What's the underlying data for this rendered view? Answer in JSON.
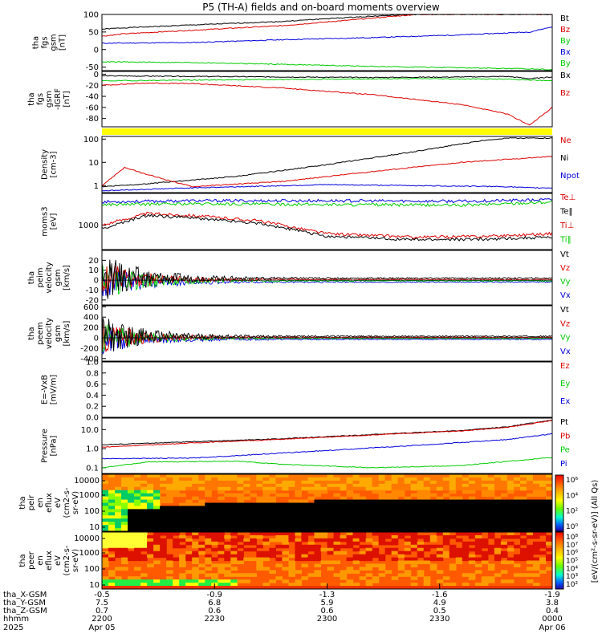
{
  "title": "P5 (TH-A) fields and on-board moments overview",
  "colors": {
    "black": "#000000",
    "red": "#dd0000",
    "green": "#00cc00",
    "blue": "#0000dd",
    "yellow": "#ffff00",
    "spec_bg": "#ff5a00"
  },
  "chart_data": [
    {
      "id": "fgs",
      "type": "line",
      "ylabel": [
        "tha",
        "fgs",
        "gsm",
        "[nT]"
      ],
      "yticks": [
        "100",
        "50",
        "0",
        "-50"
      ],
      "ylim": [
        -60,
        100
      ],
      "legend": [
        {
          "text": "Bt",
          "color": "black"
        },
        {
          "text": "Bz",
          "color": "red"
        },
        {
          "text": "By",
          "color": "green"
        },
        {
          "text": "Bx",
          "color": "blue"
        },
        {
          "text": "By",
          "color": "green"
        }
      ],
      "series": [
        {
          "color": "black",
          "values": [
            [
              0,
              58
            ],
            [
              0.05,
              62
            ],
            [
              0.2,
              70
            ],
            [
              0.4,
              80
            ],
            [
              0.5,
              88
            ],
            [
              0.6,
              95
            ],
            [
              0.7,
              100
            ]
          ]
        },
        {
          "color": "red",
          "values": [
            [
              0,
              38
            ],
            [
              0.05,
              45
            ],
            [
              0.2,
              55
            ],
            [
              0.4,
              68
            ],
            [
              0.55,
              84
            ],
            [
              0.65,
              95
            ],
            [
              0.7,
              100
            ]
          ]
        },
        {
          "color": "blue",
          "values": [
            [
              0,
              18
            ],
            [
              0.2,
              20
            ],
            [
              0.4,
              28
            ],
            [
              0.6,
              34
            ],
            [
              0.8,
              42
            ],
            [
              0.95,
              50
            ],
            [
              1,
              65
            ]
          ]
        },
        {
          "color": "green",
          "values": [
            [
              0,
              -35
            ],
            [
              0.2,
              -37
            ],
            [
              0.4,
              -42
            ],
            [
              0.6,
              -48
            ],
            [
              0.8,
              -52
            ],
            [
              0.95,
              -55
            ],
            [
              1,
              -57
            ]
          ]
        }
      ]
    },
    {
      "id": "fgs2",
      "type": "line",
      "ylabel": [
        "tha",
        "fgs",
        "gsm",
        "-IGRF",
        "[nT]"
      ],
      "yticks": [
        "0",
        "-20",
        "-40",
        "-60",
        "-80"
      ],
      "ylim": [
        -95,
        5
      ],
      "legend": [
        {
          "text": "Bx",
          "color": "black"
        },
        {
          "text": "Bz",
          "color": "red"
        }
      ],
      "series": [
        {
          "color": "black",
          "values": [
            [
              0,
              -3
            ],
            [
              0.2,
              -4
            ],
            [
              0.4,
              -5
            ],
            [
              0.6,
              -6
            ],
            [
              0.8,
              -5
            ],
            [
              0.9,
              -4
            ],
            [
              0.95,
              -8
            ],
            [
              1,
              -5
            ]
          ]
        },
        {
          "color": "green",
          "values": [
            [
              0,
              -12
            ],
            [
              0.3,
              -10
            ],
            [
              0.5,
              -9
            ],
            [
              0.7,
              -8
            ],
            [
              0.9,
              -9
            ],
            [
              1,
              -12
            ]
          ]
        },
        {
          "color": "red",
          "values": [
            [
              0,
              -20
            ],
            [
              0.1,
              -16
            ],
            [
              0.2,
              -17
            ],
            [
              0.4,
              -25
            ],
            [
              0.6,
              -37
            ],
            [
              0.8,
              -55
            ],
            [
              0.9,
              -72
            ],
            [
              0.95,
              -92
            ],
            [
              1,
              -60
            ]
          ]
        }
      ]
    },
    {
      "id": "mode_bar",
      "type": "bar",
      "color": "yellow"
    },
    {
      "id": "density",
      "type": "line",
      "ylabel": [
        "Density",
        "[cm-3]"
      ],
      "yscale": "log",
      "yticks": [
        "100",
        "10",
        "1"
      ],
      "ylim": [
        0.5,
        130
      ],
      "legend": [
        {
          "text": "Ne",
          "color": "red"
        },
        {
          "text": "Ni",
          "color": "black"
        },
        {
          "text": "Npot",
          "color": "blue"
        }
      ],
      "series": [
        {
          "color": "black",
          "values": [
            [
              0,
              0.9
            ],
            [
              0.1,
              1.2
            ],
            [
              0.3,
              2.5
            ],
            [
              0.5,
              8
            ],
            [
              0.7,
              30
            ],
            [
              0.85,
              90
            ],
            [
              0.9,
              110
            ]
          ]
        },
        {
          "color": "red",
          "values": [
            [
              0,
              1
            ],
            [
              0.05,
              6
            ],
            [
              0.1,
              3
            ],
            [
              0.2,
              0.9
            ],
            [
              0.4,
              1.5
            ],
            [
              0.6,
              4
            ],
            [
              0.8,
              10
            ],
            [
              1,
              18
            ]
          ]
        },
        {
          "color": "blue",
          "values": [
            [
              0,
              0.6
            ],
            [
              0.2,
              0.8
            ],
            [
              0.5,
              1.1
            ],
            [
              0.7,
              1
            ],
            [
              0.9,
              0.9
            ],
            [
              0.95,
              0.8
            ]
          ]
        }
      ]
    },
    {
      "id": "temp",
      "type": "line",
      "ylabel": [
        "moms3",
        "[eV]"
      ],
      "yscale": "log",
      "yticks": [
        "1000"
      ],
      "ylim": [
        100,
        20000
      ],
      "legend": [
        {
          "text": "Te⊥",
          "color": "red"
        },
        {
          "text": "Te‖",
          "color": "black"
        },
        {
          "text": "Ti⊥",
          "color": "red"
        },
        {
          "text": "Ti‖",
          "color": "green"
        }
      ],
      "series": [
        {
          "color": "blue",
          "values": [
            [
              0,
              9000
            ],
            [
              0.2,
              10000
            ],
            [
              0.5,
              10000
            ],
            [
              0.8,
              9500
            ],
            [
              1,
              11000
            ]
          ]
        },
        {
          "color": "green",
          "values": [
            [
              0,
              7000
            ],
            [
              0.2,
              7500
            ],
            [
              0.5,
              7000
            ],
            [
              0.8,
              6500
            ],
            [
              1,
              9000
            ]
          ]
        },
        {
          "color": "red",
          "values": [
            [
              0,
              1000
            ],
            [
              0.1,
              3000
            ],
            [
              0.2,
              2500
            ],
            [
              0.35,
              1500
            ],
            [
              0.5,
              450
            ],
            [
              0.7,
              320
            ],
            [
              0.85,
              350
            ],
            [
              1,
              450
            ]
          ]
        },
        {
          "color": "black",
          "values": [
            [
              0,
              700
            ],
            [
              0.1,
              2500
            ],
            [
              0.2,
              2000
            ],
            [
              0.35,
              1200
            ],
            [
              0.5,
              350
            ],
            [
              0.7,
              250
            ],
            [
              0.85,
              270
            ],
            [
              1,
              320
            ]
          ]
        }
      ]
    },
    {
      "id": "peim",
      "type": "line",
      "ylabel": [
        "tha",
        "peim",
        "velocity",
        "gsm",
        "[km/s]"
      ],
      "yticks": [
        "20",
        "10",
        "0",
        "-10",
        "-20"
      ],
      "ylim": [
        -25,
        30
      ],
      "legend": [
        {
          "text": "Vt",
          "color": "black"
        },
        {
          "text": "Vz",
          "color": "red"
        },
        {
          "text": "Vy",
          "color": "green"
        },
        {
          "text": "Vx",
          "color": "blue"
        }
      ],
      "series": [
        {
          "color": "black",
          "values": [
            [
              0,
              0
            ],
            [
              1,
              0
            ]
          ]
        }
      ]
    },
    {
      "id": "peem",
      "type": "line",
      "ylabel": [
        "tha",
        "peem",
        "velocity",
        "gsm",
        "[km/s]"
      ],
      "yticks": [
        "600",
        "400",
        "200",
        "0",
        "-200",
        "-400"
      ],
      "ylim": [
        -450,
        620
      ],
      "legend": [
        {
          "text": "Vt",
          "color": "black"
        },
        {
          "text": "Vz",
          "color": "red"
        },
        {
          "text": "Vy",
          "color": "green"
        },
        {
          "text": "Vx",
          "color": "blue"
        }
      ],
      "series": [
        {
          "color": "black",
          "values": [
            [
              0,
              0
            ],
            [
              1,
              0
            ]
          ]
        }
      ]
    },
    {
      "id": "efield",
      "type": "line",
      "ylabel": [
        "E=-VxB",
        "[mV/m]"
      ],
      "yticks": [
        "1.0",
        "0.8",
        "0.6",
        "0.4",
        "0.2",
        "0.0"
      ],
      "ylim": [
        0,
        1.0
      ],
      "legend": [
        {
          "text": "Ez",
          "color": "red"
        },
        {
          "text": "Ey",
          "color": "green"
        },
        {
          "text": "Ex",
          "color": "blue"
        }
      ],
      "series": []
    },
    {
      "id": "pressure",
      "type": "line",
      "ylabel": [
        "Pressure",
        "[nPa]"
      ],
      "yscale": "log",
      "yticks": [
        "10.0",
        "1.0",
        "0.1"
      ],
      "ylim": [
        0.05,
        40
      ],
      "legend": [
        {
          "text": "Pt",
          "color": "black"
        },
        {
          "text": "Pb",
          "color": "red"
        },
        {
          "text": "Pe",
          "color": "green"
        },
        {
          "text": "Pi",
          "color": "blue"
        }
      ],
      "series": [
        {
          "color": "black",
          "values": [
            [
              0,
              1.6
            ],
            [
              0.2,
              2.3
            ],
            [
              0.4,
              3.3
            ],
            [
              0.6,
              5.5
            ],
            [
              0.8,
              9
            ],
            [
              0.9,
              14
            ],
            [
              1,
              32
            ]
          ]
        },
        {
          "color": "red",
          "values": [
            [
              0,
              1.2
            ],
            [
              0.2,
              2.0
            ],
            [
              0.4,
              3.1
            ],
            [
              0.6,
              5.2
            ],
            [
              0.8,
              8.6
            ],
            [
              0.9,
              13
            ],
            [
              1,
              30
            ]
          ]
        },
        {
          "color": "blue",
          "values": [
            [
              0,
              0.3
            ],
            [
              0.2,
              0.32
            ],
            [
              0.5,
              0.8
            ],
            [
              0.7,
              1.5
            ],
            [
              0.9,
              3
            ],
            [
              1,
              6
            ]
          ]
        },
        {
          "color": "green",
          "values": [
            [
              0,
              0.1
            ],
            [
              0.1,
              0.2
            ],
            [
              0.3,
              0.22
            ],
            [
              0.4,
              0.15
            ],
            [
              0.6,
              0.1
            ],
            [
              0.8,
              0.13
            ],
            [
              1,
              0.35
            ]
          ]
        }
      ]
    },
    {
      "id": "peir",
      "type": "heatmap",
      "ylabel": [
        "tha",
        "peir",
        "en",
        "eflux",
        "eV",
        "(cm2-s-",
        "sr-eV)"
      ],
      "yscale": "log",
      "yticks": [
        "10000",
        "1000",
        "100",
        "10"
      ]
    },
    {
      "id": "peer",
      "type": "heatmap",
      "ylabel": [
        "tha",
        "peer",
        "en",
        "eflux",
        "eV",
        "(cm2-s-",
        "sr-eV)"
      ],
      "yscale": "log",
      "yticks": [
        "10000",
        "1000",
        "100",
        "10"
      ]
    }
  ],
  "colorbars": [
    {
      "ticks": [
        "10⁶",
        "10⁴",
        "10²",
        "10⁰"
      ]
    },
    {
      "ticks": [
        "10⁸",
        "10⁷",
        "10⁶",
        "10⁵",
        "10⁴",
        "10³",
        "10²"
      ]
    }
  ],
  "colorbar_label": "[eV/(cm²-s-sr-eV)] (All Qs)",
  "xaxis": {
    "row_labels": [
      "tha_X-GSM",
      "tha_Y-GSM",
      "tha_Z-GSM",
      "hhmm",
      "2025"
    ],
    "ticks": [
      {
        "pos": 0.0,
        "rows": [
          "-0.5",
          "7.5",
          "0.7",
          "2200",
          "Apr 05"
        ]
      },
      {
        "pos": 0.25,
        "rows": [
          "-0.9",
          "6.8",
          "0.6",
          "2230",
          ""
        ]
      },
      {
        "pos": 0.5,
        "rows": [
          "-1.3",
          "5.9",
          "0.6",
          "2300",
          ""
        ]
      },
      {
        "pos": 0.75,
        "rows": [
          "-1.6",
          "4.9",
          "0.5",
          "2330",
          ""
        ]
      },
      {
        "pos": 1.0,
        "rows": [
          "-1.9",
          "3.8",
          "0.4",
          "0000",
          "Apr 06"
        ]
      }
    ]
  }
}
